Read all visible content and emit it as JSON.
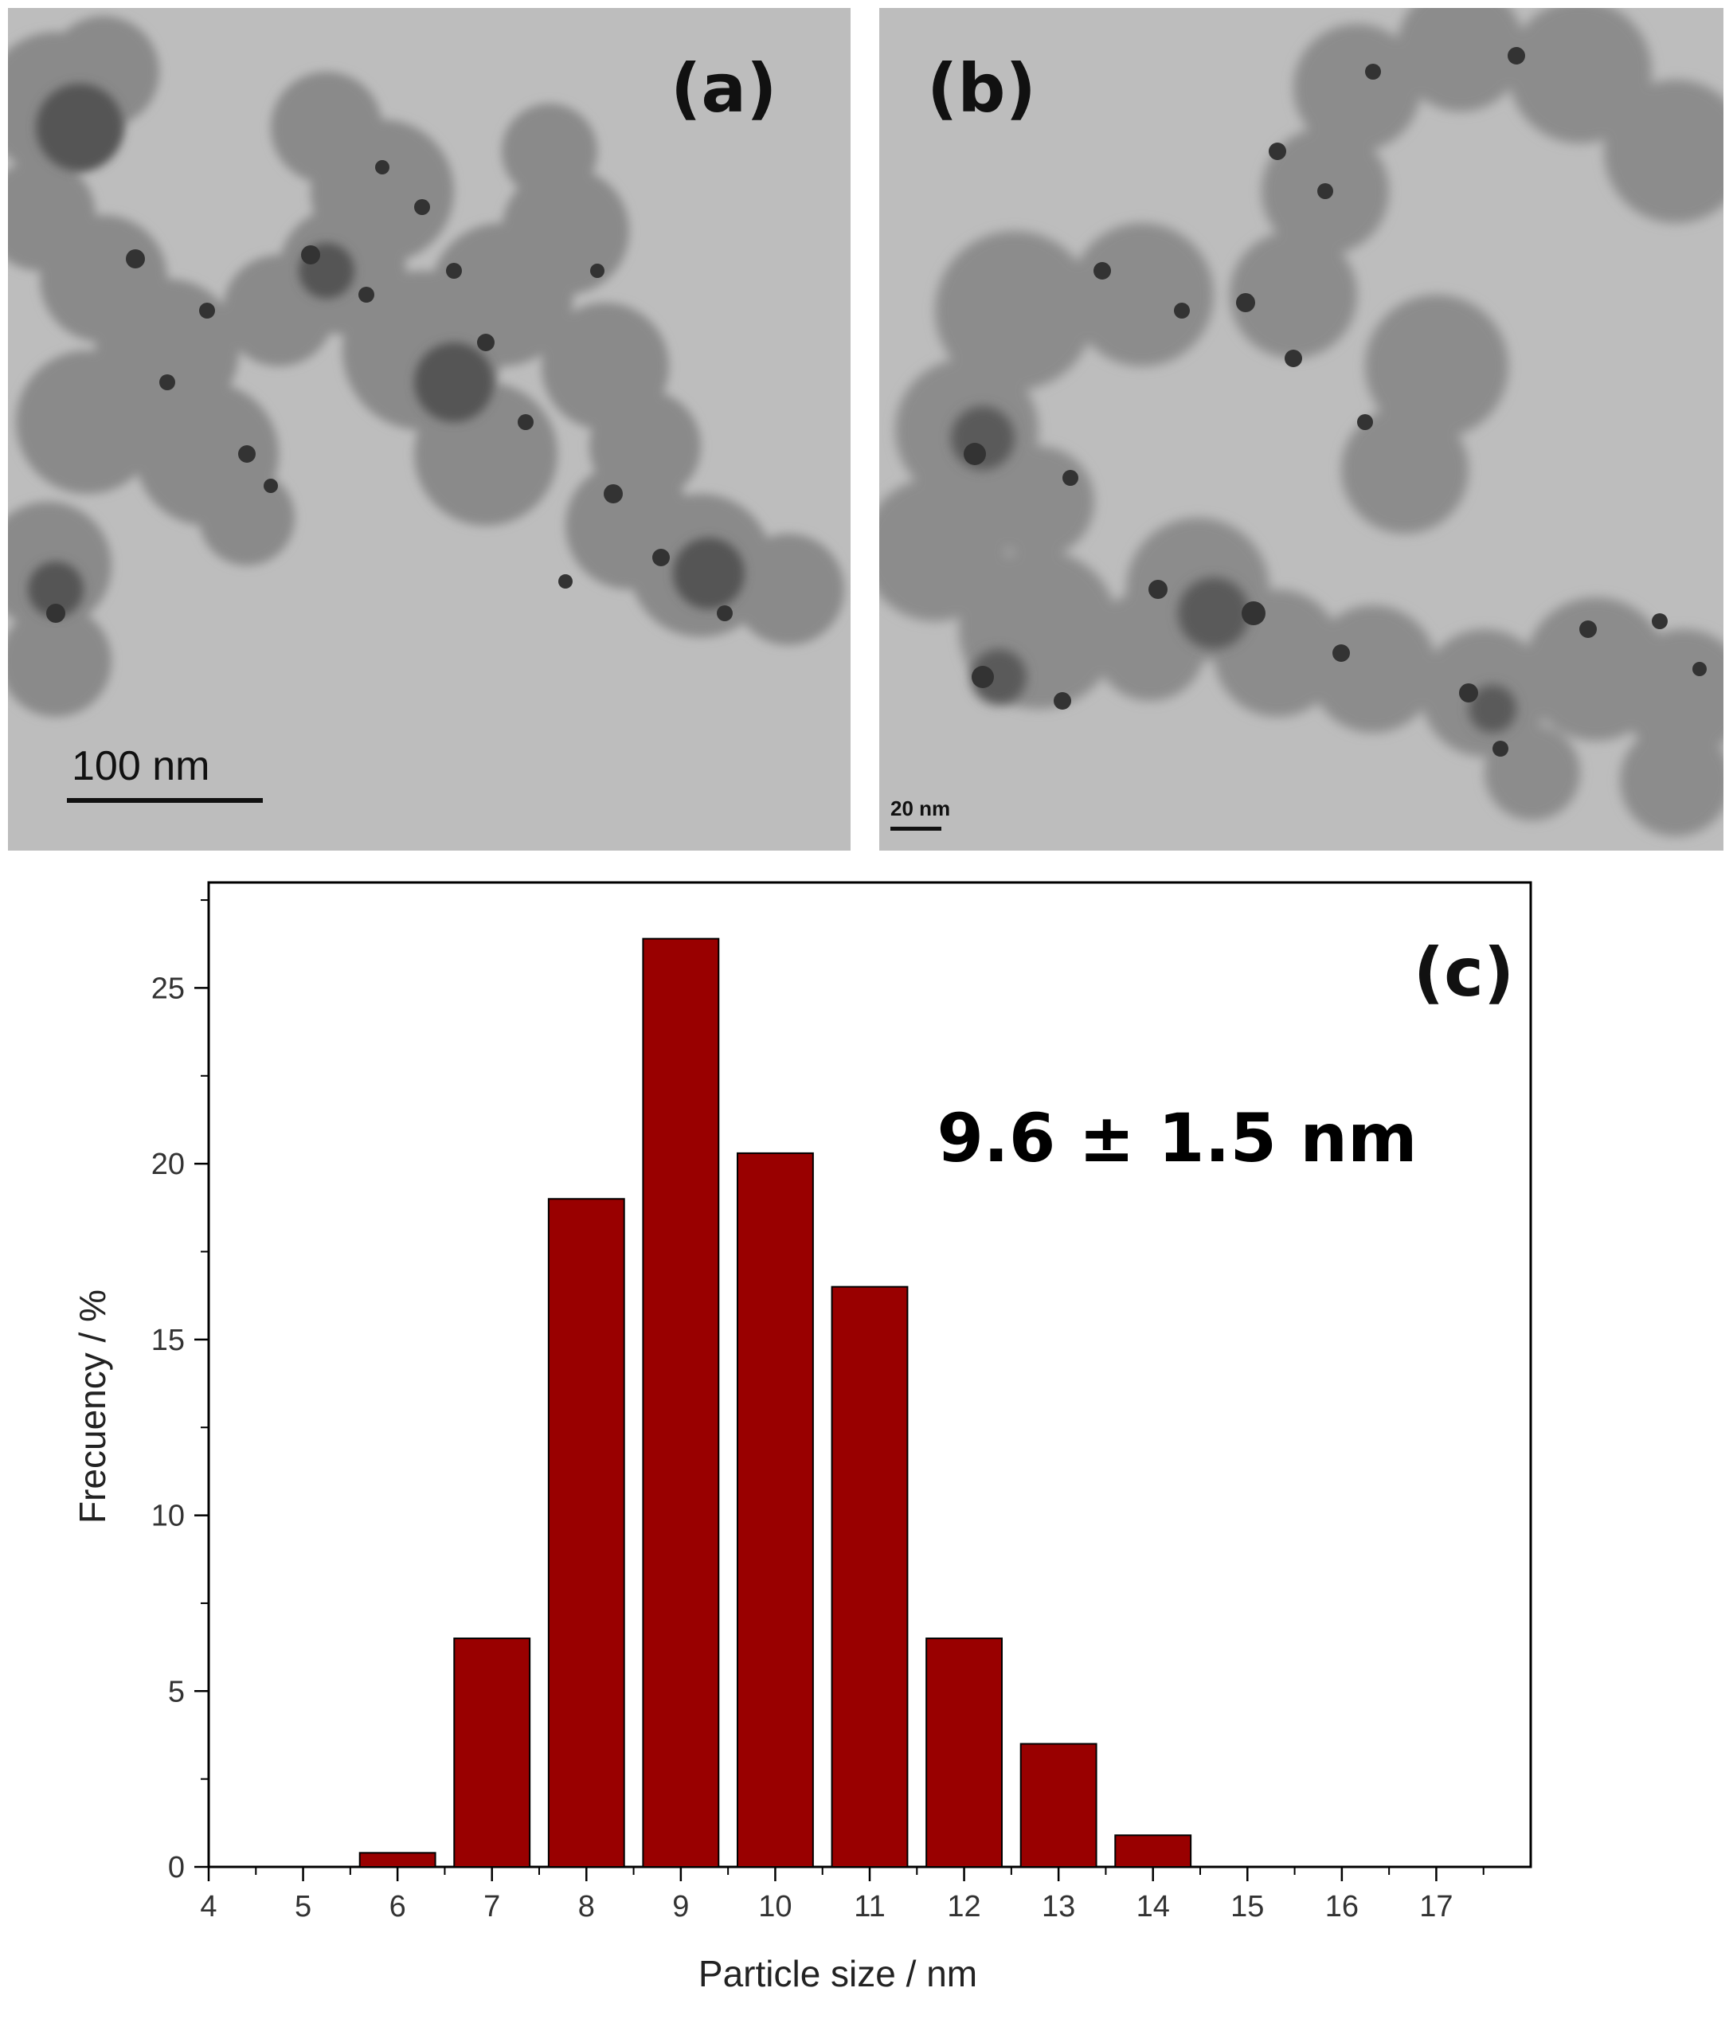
{
  "panels": [
    {
      "label": "(a)",
      "scale_label": "100 nm"
    },
    {
      "label": "(b)",
      "scale_label": "20 nm"
    }
  ],
  "chart_data": {
    "type": "bar",
    "label": "(c)",
    "annotation": "9.6 ± 1.5 nm",
    "xlabel": "Particle size  / nm",
    "ylabel": "Frecuency / %",
    "xlim": [
      4,
      18
    ],
    "ylim": [
      0,
      28
    ],
    "x_ticks": [
      4,
      5,
      6,
      7,
      8,
      9,
      10,
      11,
      12,
      13,
      14,
      15,
      16,
      17
    ],
    "y_ticks": [
      0,
      5,
      10,
      15,
      20,
      25
    ],
    "grid": false,
    "bar_color": "#990000",
    "categories": [
      6,
      7,
      8,
      9,
      10,
      11,
      12,
      13,
      14
    ],
    "values": [
      0.4,
      6.5,
      19.0,
      26.4,
      20.3,
      16.5,
      6.5,
      3.5,
      0.9
    ]
  }
}
